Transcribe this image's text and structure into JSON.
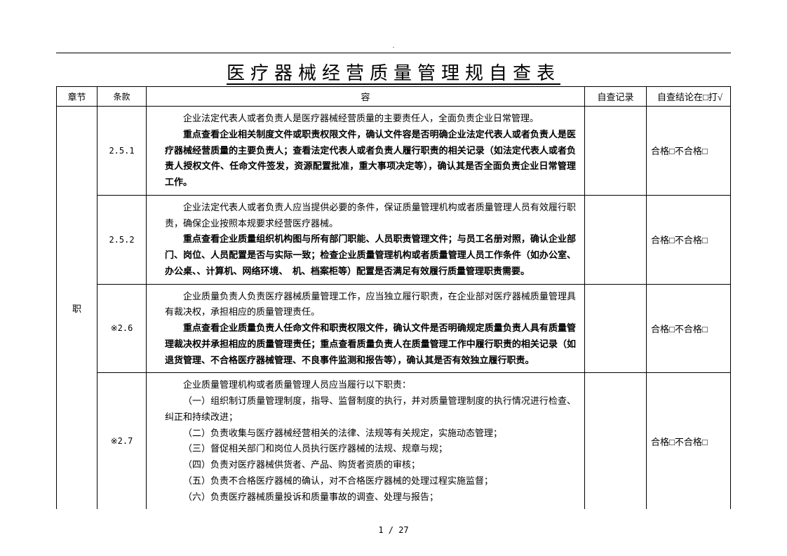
{
  "header_dot": ".",
  "title": "医疗器械经营质量管理规自查表",
  "columns": {
    "chapter": "章节",
    "clause": "条款",
    "content": "容",
    "record": "自查记录",
    "result": "自查结论在□打√"
  },
  "chapter_label": "职",
  "rows": [
    {
      "clause": "2.5.1",
      "paras": [
        {
          "text": "企业法定代表人或者负责人是医疗器械经营质量的主要责任人，全面负责企业日常管理。",
          "bold": false
        },
        {
          "text": "重点查看企业相关制度文件或职责权限文件，确认文件容是否明确企业法定代表人或者负责人是医疗器械经营质量的主要负责人；查看法定代表人或者负责人履行职责的相关记录（如法定代表人或者负责人授权文件、任命文件签发，资源配置批准，重大事项决定等），确认其是否全面负责企业日常管理工作。",
          "bold": true
        }
      ],
      "result": "合格□不合格□"
    },
    {
      "clause": "2.5.2",
      "paras": [
        {
          "text": "企业法定代表人或者负责人应当提供必要的条件，保证质量管理机构或者质量管理人员有效履行职责，确保企业按照本规要求经营医疗器械。",
          "bold": false
        },
        {
          "text": "重点查看企业质量组织机构图与所有部门职能、人员职责管理文件；与员工名册对照，确认企业部门、岗位、人员配置是否与实际一致；检查企业质量管理机构或者质量管理人员工作条件（如办公室、办公桌、、计算机、网络环境、　机、档案柜等）配置是否满足有效履行质量管理职责需要。",
          "bold": true
        }
      ],
      "result": "合格□不合格□"
    },
    {
      "clause": "※2.6",
      "paras": [
        {
          "text": "企业质量负责人负责医疗器械质量管理工作，应当独立履行职责，在企业部对医疗器械质量管理具有裁决权，承担相应的质量管理责任。",
          "bold": false
        },
        {
          "text": "重点查看企业质量负责人任命文件和职责权限文件，确认文件是否明确规定质量负责人具有质量管理裁决权并承担相应的质量管理责任；重点查看质量负责人在质量管理工作中履行职责的相关记录（如退货管理、不合格医疗器械管理、不良事件监测和报告等），确认其是否有效独立履行职责。",
          "bold": true
        }
      ],
      "result": "合格□不合格□"
    },
    {
      "clause": "※2.7",
      "paras": [
        {
          "text": "企业质量管理机构或者质量管理人员应当履行以下职责：",
          "bold": false
        },
        {
          "text": "（一）组织制订质量管理制度，指导、监督制度的执行，并对质量管理制度的执行情况进行检查、纠正和持续改进；",
          "bold": false,
          "sub": true
        },
        {
          "text": "（二）负责收集与医疗器械经营相关的法律、法规等有关规定，实施动态管理；",
          "bold": false,
          "sub": true
        },
        {
          "text": "（三）督促相关部门和岗位人员执行医疗器械的法规、规章与规；",
          "bold": false,
          "sub": true
        },
        {
          "text": "（四）负责对医疗器械供货者、产品、购货者资质的审核；",
          "bold": false,
          "sub": true
        },
        {
          "text": "（五）负责不合格医疗器械的确认，对不合格医疗器械的处理过程实施监督；",
          "bold": false,
          "sub": true
        },
        {
          "text": "（六）负责医疗器械质量投诉和质量事故的调查、处理与报告；",
          "bold": false,
          "sub": true
        }
      ],
      "result": "合格□不合格□"
    }
  ],
  "page_number": "1 / 27",
  "colors": {
    "border": "#000000",
    "text": "#000000",
    "background": "#ffffff"
  },
  "fontsize": {
    "title": 26,
    "body": 13,
    "header": 13,
    "pagenum": 12
  }
}
